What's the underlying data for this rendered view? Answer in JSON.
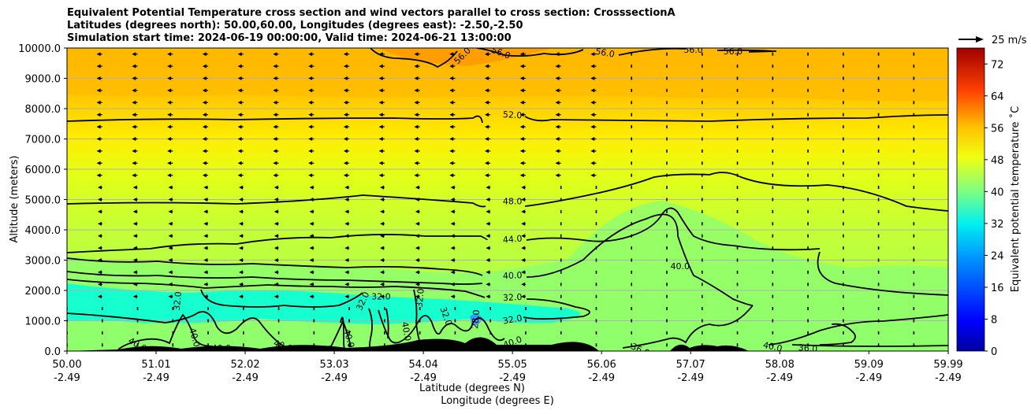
{
  "chart_data": {
    "type": "contour cross-section",
    "title_lines": [
      "Equivalent Potential Temperature cross section and wind vectors parallel to cross section: CrosssectionA",
      "Latitudes (degrees north): 50.00,60.00, Longitudes (degrees east): -2.50,-2.50",
      "Simulation start time: 2024-06-19 00:00:00, Valid time: 2024-06-21 13:00:00"
    ],
    "ylabel": "Altitude (meters)",
    "xlabel": "Latitude (degrees N)",
    "xlabel2": "Longitude (degrees E)",
    "ylim": [
      0,
      10000
    ],
    "xlim": [
      50.0,
      59.99
    ],
    "y_ticks": [
      "0.0",
      "1000.0",
      "2000.0",
      "3000.0",
      "4000.0",
      "5000.0",
      "6000.0",
      "7000.0",
      "8000.0",
      "9000.0",
      "10000.0"
    ],
    "y_tick_values": [
      0,
      1000,
      2000,
      3000,
      4000,
      5000,
      6000,
      7000,
      8000,
      9000,
      10000
    ],
    "x_tick_values": [
      50.0,
      51.01,
      52.02,
      53.03,
      54.04,
      55.05,
      56.06,
      57.07,
      58.08,
      59.09,
      59.99
    ],
    "x_ticks_lat": [
      "50.00",
      "51.01",
      "52.02",
      "53.03",
      "54.04",
      "55.05",
      "56.06",
      "57.07",
      "58.08",
      "59.09",
      "59.99"
    ],
    "x_ticks_lon": [
      "-2.49",
      "-2.49",
      "-2.49",
      "-2.49",
      "-2.49",
      "-2.49",
      "-2.49",
      "-2.49",
      "-2.49",
      "-2.49",
      "-2.49"
    ],
    "colorbar": {
      "label": "Equivalent potential temperature ˚C",
      "range": [
        0,
        76
      ],
      "ticks": [
        "0",
        "8",
        "16",
        "24",
        "32",
        "40",
        "48",
        "56",
        "64",
        "72"
      ],
      "tick_values": [
        0,
        8,
        16,
        24,
        32,
        40,
        48,
        56,
        64,
        72
      ]
    },
    "wind_key": "25 m/s",
    "contour_labels": [
      {
        "text": "56.0",
        "lat": 54.48,
        "alt": 9750,
        "angle": -45
      },
      {
        "text": "56.0",
        "lat": 54.92,
        "alt": 9850,
        "angle": 20
      },
      {
        "text": "56.0",
        "lat": 56.1,
        "alt": 9850,
        "angle": 10
      },
      {
        "text": "56.0",
        "lat": 57.1,
        "alt": 9950,
        "angle": 0
      },
      {
        "text": "56.0",
        "lat": 57.55,
        "alt": 9900,
        "angle": 0
      },
      {
        "text": "52.0",
        "lat": 55.05,
        "alt": 7800,
        "angle": 3
      },
      {
        "text": "48.0",
        "lat": 55.05,
        "alt": 4950,
        "angle": 0
      },
      {
        "text": "44.0",
        "lat": 55.05,
        "alt": 3700,
        "angle": -5
      },
      {
        "text": "40.0",
        "lat": 55.05,
        "alt": 2500,
        "angle": -3
      },
      {
        "text": "40.0",
        "lat": 56.95,
        "alt": 2800,
        "angle": 0
      },
      {
        "text": "32.0",
        "lat": 55.05,
        "alt": 1780,
        "angle": -3
      },
      {
        "text": "32.0",
        "lat": 55.05,
        "alt": 1050,
        "angle": -10
      },
      {
        "text": "32.0",
        "lat": 53.56,
        "alt": 1800,
        "angle": 0
      },
      {
        "text": "32.0",
        "lat": 53.35,
        "alt": 1650,
        "angle": -65
      },
      {
        "text": "32.0",
        "lat": 54.0,
        "alt": 1750,
        "angle": -85
      },
      {
        "text": "32.0",
        "lat": 54.3,
        "alt": 1150,
        "angle": 70
      },
      {
        "text": "32.0",
        "lat": 51.25,
        "alt": 1650,
        "angle": -85
      },
      {
        "text": "28.0",
        "lat": 54.63,
        "alt": 1050,
        "angle": -85
      },
      {
        "text": "40.0",
        "lat": 50.8,
        "alt": 220,
        "angle": 30
      },
      {
        "text": "40.0",
        "lat": 51.45,
        "alt": 450,
        "angle": 75
      },
      {
        "text": "40.0",
        "lat": 51.75,
        "alt": 100,
        "angle": 0
      },
      {
        "text": "40.0",
        "lat": 52.45,
        "alt": 180,
        "angle": 20
      },
      {
        "text": "40.0",
        "lat": 53.2,
        "alt": 420,
        "angle": 75
      },
      {
        "text": "40.0",
        "lat": 53.85,
        "alt": 650,
        "angle": 80
      },
      {
        "text": "40.0",
        "lat": 55.05,
        "alt": 300,
        "angle": -20
      },
      {
        "text": "36.0",
        "lat": 56.5,
        "alt": 50,
        "angle": 25
      },
      {
        "text": "40.0",
        "lat": 58.0,
        "alt": 150,
        "angle": 12
      },
      {
        "text": "36.0",
        "lat": 58.4,
        "alt": 100,
        "angle": 5
      }
    ],
    "wind_vectors": [
      {
        "alt_range": [
          5500,
          10000
        ],
        "lat_range": [
          50.0,
          56.3
        ],
        "direction": "southward",
        "approx_speed_ms": 5
      },
      {
        "alt_range": [
          1500,
          5500
        ],
        "lat_range": [
          50.0,
          55.5
        ],
        "direction": "southward",
        "approx_speed_ms": 4
      },
      {
        "alt_range": [
          0,
          10000
        ],
        "lat_range": [
          56.3,
          59.99
        ],
        "direction": "calm",
        "approx_speed_ms": 0
      }
    ]
  }
}
